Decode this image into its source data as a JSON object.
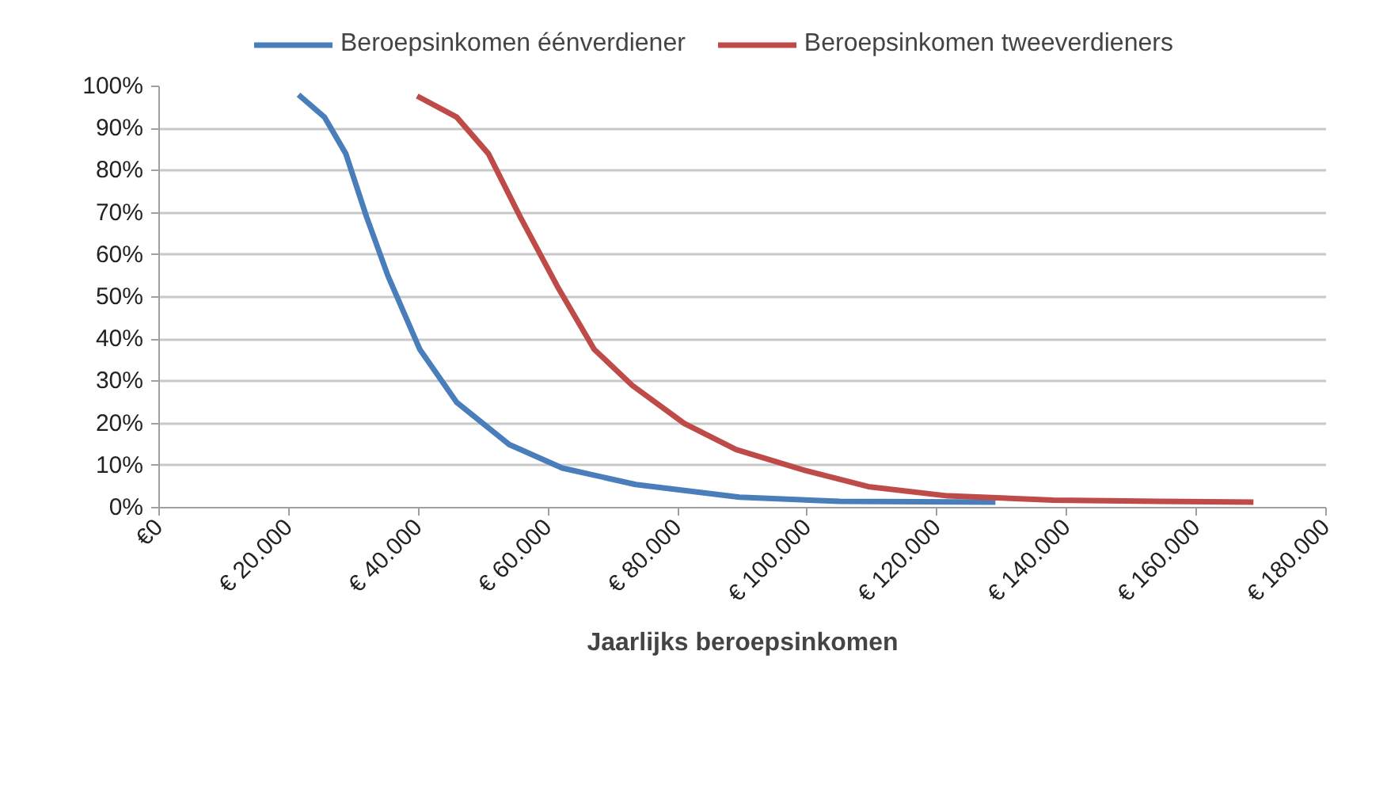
{
  "chart_data": {
    "type": "line",
    "xlabel": "Jaarlijks beroepsinkomen",
    "xlim": [
      0,
      180000
    ],
    "ylim": [
      0,
      100
    ],
    "xticks": [
      {
        "value": 0,
        "label": "€0"
      },
      {
        "value": 20000,
        "label": "€ 20.000"
      },
      {
        "value": 40000,
        "label": "€ 40.000"
      },
      {
        "value": 60000,
        "label": "€ 60.000"
      },
      {
        "value": 80000,
        "label": "€ 80.000"
      },
      {
        "value": 100000,
        "label": "€ 100.000"
      },
      {
        "value": 120000,
        "label": "€ 120.000"
      },
      {
        "value": 140000,
        "label": "€ 140.000"
      },
      {
        "value": 160000,
        "label": "€ 160.000"
      },
      {
        "value": 180000,
        "label": "€ 180.000"
      }
    ],
    "yticks": [
      {
        "value": 0,
        "label": "0%"
      },
      {
        "value": 10,
        "label": "10%"
      },
      {
        "value": 20,
        "label": "20%"
      },
      {
        "value": 30,
        "label": "30%"
      },
      {
        "value": 40,
        "label": "40%"
      },
      {
        "value": 50,
        "label": "50%"
      },
      {
        "value": 60,
        "label": "60%"
      },
      {
        "value": 70,
        "label": "70%"
      },
      {
        "value": 80,
        "label": "80%"
      },
      {
        "value": 90,
        "label": "90%"
      },
      {
        "value": 100,
        "label": "100%"
      }
    ],
    "grid": "y",
    "legend": "top",
    "marker": "none",
    "line_style": "solid",
    "series": [
      {
        "name": "Beroepsinkomen éénverdiener",
        "color": "#4a7ebb",
        "x": [
          21500,
          25500,
          28800,
          32000,
          35300,
          40200,
          45900,
          54000,
          62200,
          73500,
          89500,
          105000,
          129000
        ],
        "values": [
          98,
          92.7,
          84,
          69,
          55,
          37.6,
          25,
          15,
          9.4,
          5.5,
          2.5,
          1.5,
          1.3
        ]
      },
      {
        "name": "Beroepsinkomen tweeverdieners",
        "color": "#be4b48",
        "x": [
          39800,
          45900,
          50800,
          55700,
          61400,
          67100,
          73000,
          81000,
          89000,
          99700,
          109400,
          121600,
          137900,
          154000,
          168800
        ],
        "values": [
          97.7,
          92.7,
          84,
          69,
          52.6,
          37.6,
          29,
          20,
          13.8,
          8.8,
          5,
          2.8,
          1.8,
          1.5,
          1.3
        ]
      }
    ]
  }
}
